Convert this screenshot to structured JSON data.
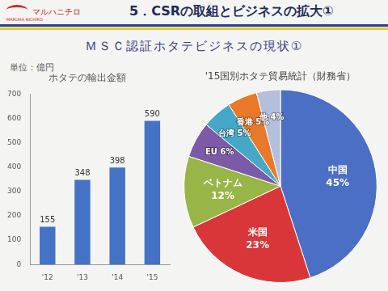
{
  "header": {
    "logo": "マルハニチロ",
    "logo_sub": "MARUHA NICHIRO",
    "title": "5．CSRの取組とビジネスの拡大①"
  },
  "subtitle": "ＭＳＣ認証ホタテビジネスの現状①",
  "unit": "単位：億円",
  "chart_data": [
    {
      "type": "bar",
      "title": "ホタテの輸出金額",
      "categories": [
        "'12",
        "'13",
        "'14",
        "'15"
      ],
      "values": [
        155,
        348,
        398,
        590
      ],
      "color": "#4472c4",
      "ylim": [
        0,
        700
      ],
      "yticks": [
        0,
        100,
        200,
        300,
        400,
        500,
        600,
        700
      ],
      "grid": false,
      "data_labels": true
    },
    {
      "type": "pie",
      "title": "'15国別ホタテ貿易統計（財務省）",
      "categories": [
        "中国",
        "米国",
        "ベトナム",
        "EU",
        "台湾",
        "香港",
        "他"
      ],
      "values": [
        45,
        23,
        12,
        6,
        5,
        5,
        4
      ],
      "value_labels": [
        "45%",
        "23%",
        "12%",
        "6%",
        "5%",
        "5%",
        "4%"
      ],
      "colors": [
        "#4a6fc4",
        "#d9363a",
        "#98b548",
        "#7b5aa6",
        "#46a8c8",
        "#e8782a",
        "#b3bfdc"
      ],
      "data_labels": true
    }
  ]
}
